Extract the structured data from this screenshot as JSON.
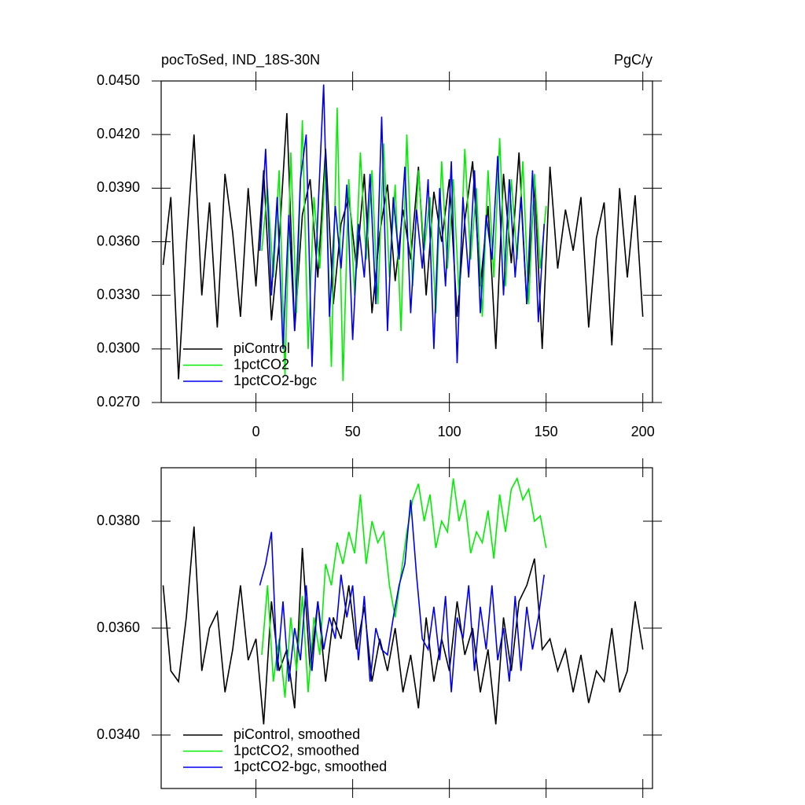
{
  "chart_data": [
    {
      "type": "line",
      "title": "pocToSed, IND_18S-30N",
      "units": "PgC/y",
      "xlim": [
        -49,
        205
      ],
      "xticks": [
        0,
        50,
        100,
        150,
        200
      ],
      "xtick_labels": true,
      "ylim": [
        0.027,
        0.045
      ],
      "yticks": [
        {
          "value": 0.027,
          "label": "0.0270"
        },
        {
          "value": 0.03,
          "label": "0.0300"
        },
        {
          "value": 0.033,
          "label": "0.0330"
        },
        {
          "value": 0.036,
          "label": "0.0360"
        },
        {
          "value": 0.039,
          "label": "0.0390"
        },
        {
          "value": 0.042,
          "label": "0.0420"
        },
        {
          "value": 0.045,
          "label": "0.0450"
        }
      ],
      "legend": "lower left",
      "series": [
        {
          "name": "piControl",
          "color": "#000000",
          "x": [
            -48,
            -44,
            -40,
            -36,
            -32,
            -28,
            -24,
            -20,
            -16,
            -12,
            -8,
            -4,
            0,
            4,
            8,
            12,
            16,
            20,
            24,
            28,
            32,
            36,
            40,
            44,
            48,
            52,
            56,
            60,
            64,
            68,
            72,
            76,
            80,
            84,
            88,
            92,
            96,
            100,
            104,
            108,
            112,
            116,
            120,
            124,
            128,
            132,
            136,
            140,
            144,
            148,
            152,
            156,
            160,
            164,
            168,
            172,
            176,
            180,
            184,
            188,
            192,
            196,
            200
          ],
          "values": [
            0.0347,
            0.0385,
            0.0283,
            0.0358,
            0.042,
            0.033,
            0.0382,
            0.0312,
            0.0398,
            0.0365,
            0.0318,
            0.039,
            0.0335,
            0.04,
            0.0316,
            0.036,
            0.0432,
            0.031,
            0.0375,
            0.0395,
            0.034,
            0.0412,
            0.0325,
            0.037,
            0.0385,
            0.0345,
            0.0398,
            0.032,
            0.0365,
            0.0392,
            0.0338,
            0.0378,
            0.035,
            0.0402,
            0.033,
            0.0388,
            0.036,
            0.0395,
            0.0318,
            0.0372,
            0.0405,
            0.0335,
            0.038,
            0.03,
            0.0398,
            0.0348,
            0.041,
            0.0325,
            0.0392,
            0.03,
            0.0402,
            0.0345,
            0.0378,
            0.0355,
            0.0385,
            0.0312,
            0.0362,
            0.0382,
            0.0302,
            0.039,
            0.034,
            0.0386,
            0.0318
          ]
        },
        {
          "name": "1pctCO2",
          "color": "#00ee00",
          "x": [
            3,
            6,
            9,
            12,
            15,
            18,
            21,
            24,
            27,
            30,
            33,
            36,
            39,
            42,
            45,
            48,
            51,
            54,
            57,
            60,
            63,
            66,
            69,
            72,
            75,
            78,
            81,
            84,
            87,
            90,
            93,
            96,
            99,
            102,
            105,
            108,
            111,
            114,
            117,
            120,
            123,
            126,
            129,
            132,
            135,
            138,
            141,
            144,
            147,
            150
          ],
          "values": [
            0.0355,
            0.039,
            0.034,
            0.04,
            0.0285,
            0.041,
            0.032,
            0.0428,
            0.03,
            0.0385,
            0.0345,
            0.0405,
            0.029,
            0.0435,
            0.0282,
            0.0395,
            0.033,
            0.041,
            0.035,
            0.04,
            0.0325,
            0.0415,
            0.034,
            0.0392,
            0.031,
            0.042,
            0.0335,
            0.04,
            0.0355,
            0.0385,
            0.032,
            0.0405,
            0.0345,
            0.0395,
            0.033,
            0.0412,
            0.035,
            0.039,
            0.0318,
            0.04,
            0.034,
            0.0418,
            0.0335,
            0.0395,
            0.035,
            0.0405,
            0.0325,
            0.0398,
            0.0345,
            0.038
          ]
        },
        {
          "name": "1pctCO2-bgc",
          "color": "#0000ee",
          "x": [
            2,
            5,
            8,
            11,
            14,
            17,
            20,
            23,
            26,
            29,
            32,
            35,
            38,
            41,
            44,
            47,
            50,
            53,
            56,
            59,
            62,
            65,
            68,
            71,
            74,
            77,
            80,
            83,
            86,
            89,
            92,
            95,
            98,
            101,
            104,
            107,
            110,
            113,
            116,
            119,
            122,
            125,
            128,
            131,
            134,
            137,
            140,
            143,
            146,
            149
          ],
          "values": [
            0.0355,
            0.0412,
            0.033,
            0.0385,
            0.03,
            0.0375,
            0.031,
            0.0395,
            0.042,
            0.029,
            0.0375,
            0.0448,
            0.0318,
            0.038,
            0.0345,
            0.0392,
            0.0305,
            0.037,
            0.034,
            0.0398,
            0.0325,
            0.043,
            0.031,
            0.0385,
            0.035,
            0.0402,
            0.032,
            0.0378,
            0.0345,
            0.0395,
            0.03,
            0.039,
            0.0335,
            0.0405,
            0.0292,
            0.0385,
            0.034,
            0.04,
            0.032,
            0.0375,
            0.035,
            0.0408,
            0.033,
            0.0395,
            0.034,
            0.0385,
            0.0325,
            0.04,
            0.0315,
            0.037
          ]
        }
      ]
    },
    {
      "type": "line",
      "xlim": [
        -49,
        205
      ],
      "xticks": [
        0,
        50,
        100,
        150,
        200
      ],
      "xtick_labels": false,
      "ylim": [
        0.033,
        0.039
      ],
      "yticks": [
        {
          "value": 0.034,
          "label": "0.0340"
        },
        {
          "value": 0.036,
          "label": "0.0360"
        },
        {
          "value": 0.038,
          "label": "0.0380"
        }
      ],
      "legend": "lower left",
      "series": [
        {
          "name": "piControl, smoothed",
          "color": "#000000",
          "x": [
            -48,
            -44,
            -40,
            -36,
            -32,
            -28,
            -24,
            -20,
            -16,
            -12,
            -8,
            -4,
            0,
            4,
            8,
            12,
            16,
            20,
            24,
            28,
            32,
            36,
            40,
            44,
            48,
            52,
            56,
            60,
            64,
            68,
            72,
            76,
            80,
            84,
            88,
            92,
            96,
            100,
            104,
            108,
            112,
            116,
            120,
            124,
            128,
            132,
            136,
            140,
            144,
            148,
            152,
            156,
            160,
            164,
            168,
            172,
            176,
            180,
            184,
            188,
            192,
            196,
            200
          ],
          "values": [
            0.0368,
            0.0352,
            0.035,
            0.0362,
            0.0379,
            0.0352,
            0.036,
            0.0363,
            0.0348,
            0.0356,
            0.0368,
            0.0354,
            0.0358,
            0.0342,
            0.0365,
            0.0352,
            0.0356,
            0.0345,
            0.0375,
            0.0352,
            0.0365,
            0.035,
            0.0362,
            0.0358,
            0.0368,
            0.0356,
            0.0364,
            0.035,
            0.0358,
            0.0352,
            0.036,
            0.0348,
            0.0355,
            0.0345,
            0.0362,
            0.035,
            0.0358,
            0.0352,
            0.0365,
            0.0355,
            0.036,
            0.0348,
            0.0356,
            0.0342,
            0.0362,
            0.0352,
            0.0365,
            0.0368,
            0.0373,
            0.0356,
            0.0358,
            0.0352,
            0.0356,
            0.0348,
            0.0355,
            0.0346,
            0.0352,
            0.035,
            0.036,
            0.0348,
            0.0352,
            0.0365,
            0.0356
          ]
        },
        {
          "name": "1pctCO2, smoothed",
          "color": "#00ee00",
          "x": [
            3,
            6,
            9,
            12,
            15,
            18,
            21,
            24,
            27,
            30,
            33,
            36,
            39,
            42,
            45,
            48,
            51,
            54,
            57,
            60,
            63,
            66,
            69,
            72,
            75,
            78,
            81,
            84,
            87,
            90,
            93,
            96,
            99,
            102,
            105,
            108,
            111,
            114,
            117,
            120,
            123,
            126,
            129,
            132,
            135,
            138,
            141,
            144,
            147,
            150
          ],
          "values": [
            0.0355,
            0.0368,
            0.035,
            0.0358,
            0.0347,
            0.0362,
            0.0352,
            0.0366,
            0.0348,
            0.0362,
            0.0355,
            0.0372,
            0.0368,
            0.0376,
            0.0372,
            0.0378,
            0.0374,
            0.0385,
            0.0372,
            0.038,
            0.0376,
            0.0378,
            0.0368,
            0.0362,
            0.037,
            0.0378,
            0.0384,
            0.0387,
            0.038,
            0.0385,
            0.0375,
            0.038,
            0.0378,
            0.0388,
            0.038,
            0.0384,
            0.0374,
            0.0378,
            0.0376,
            0.0382,
            0.0373,
            0.0385,
            0.0378,
            0.0386,
            0.0388,
            0.0384,
            0.0386,
            0.038,
            0.0381,
            0.0375
          ]
        },
        {
          "name": "1pctCO2-bgc, smoothed",
          "color": "#0000ee",
          "x": [
            2,
            5,
            8,
            11,
            14,
            17,
            20,
            23,
            26,
            29,
            32,
            35,
            38,
            41,
            44,
            47,
            50,
            53,
            56,
            59,
            62,
            65,
            68,
            71,
            74,
            77,
            80,
            83,
            86,
            89,
            92,
            95,
            98,
            101,
            104,
            107,
            110,
            113,
            116,
            119,
            122,
            125,
            128,
            131,
            134,
            137,
            140,
            143,
            146,
            149
          ],
          "values": [
            0.0368,
            0.0372,
            0.0378,
            0.0352,
            0.0365,
            0.035,
            0.036,
            0.0354,
            0.0368,
            0.0352,
            0.0365,
            0.0356,
            0.0362,
            0.0358,
            0.037,
            0.0362,
            0.0368,
            0.0354,
            0.0366,
            0.035,
            0.036,
            0.0356,
            0.0355,
            0.0362,
            0.0368,
            0.0372,
            0.0384,
            0.037,
            0.0358,
            0.0356,
            0.0364,
            0.0354,
            0.0366,
            0.0348,
            0.0362,
            0.0358,
            0.0368,
            0.0352,
            0.0364,
            0.0356,
            0.0368,
            0.0354,
            0.036,
            0.035,
            0.0366,
            0.0352,
            0.0364,
            0.0356,
            0.0362,
            0.037
          ]
        }
      ]
    }
  ]
}
